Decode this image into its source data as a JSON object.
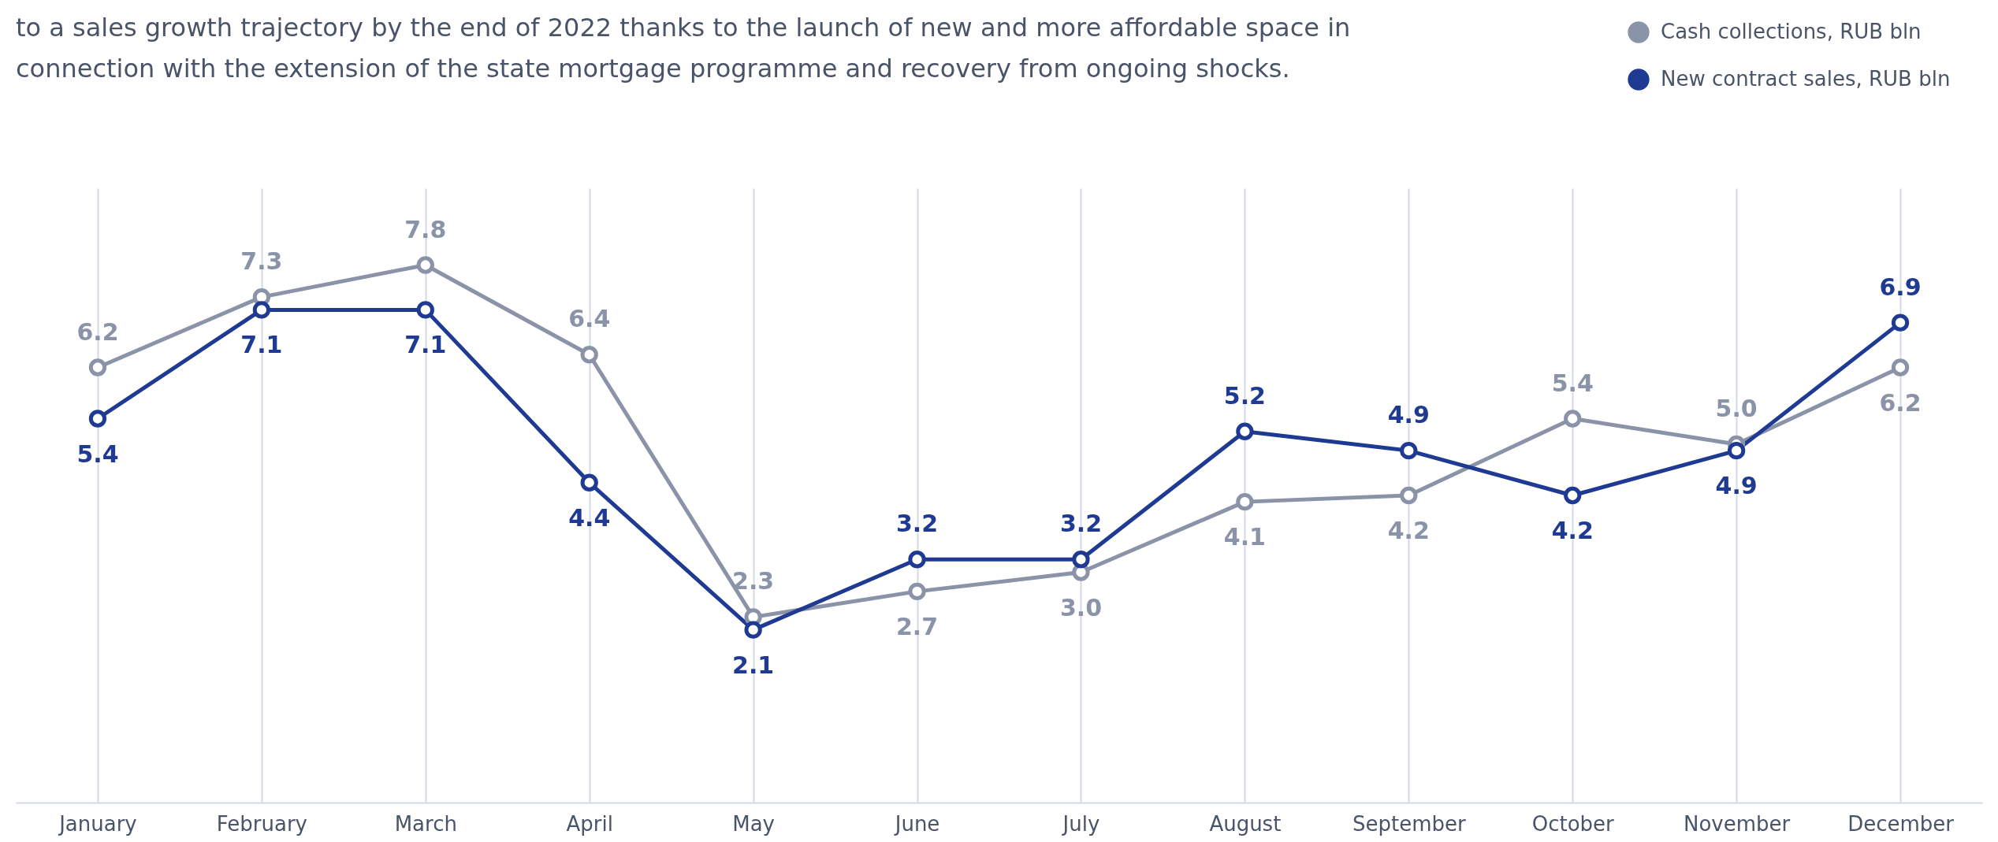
{
  "chart_data": {
    "type": "line",
    "subtitle": "to a sales growth trajectory by the end of 2022 thanks to the launch of new and more affordable space in\nconnection with the extension of the state mortgage programme and recovery from ongoing shocks.",
    "categories": [
      "January",
      "February",
      "March",
      "April",
      "May",
      "June",
      "July",
      "August",
      "September",
      "October",
      "November",
      "December"
    ],
    "series": [
      {
        "name": "Cash collections, RUB bln",
        "color": "#8a93a8",
        "values": [
          6.2,
          7.3,
          7.8,
          6.4,
          2.3,
          2.7,
          3.0,
          4.1,
          4.2,
          5.4,
          5.0,
          6.2
        ],
        "value_labels": [
          "6.2",
          "7.3",
          "7.8",
          "6.4",
          "2.3",
          "2.7",
          "3.0",
          "4.1",
          "4.2",
          "5.4",
          "5.0",
          "6.2"
        ]
      },
      {
        "name": "New contract sales, RUB bln",
        "color": "#1f3a93",
        "values": [
          5.4,
          7.1,
          7.1,
          4.4,
          2.1,
          3.2,
          3.2,
          5.2,
          4.9,
          4.2,
          4.9,
          6.9
        ],
        "value_labels": [
          "5.4",
          "7.1",
          "7.1",
          "4.4",
          "2.1",
          "3.2",
          "3.2",
          "5.2",
          "4.9",
          "4.2",
          "4.9",
          "6.9"
        ]
      }
    ],
    "ylim": [
      -0.6,
      9.0
    ],
    "tick_labels": "x",
    "grid": "x",
    "legend": "top right",
    "marker": "circle",
    "line_style": "solid"
  }
}
